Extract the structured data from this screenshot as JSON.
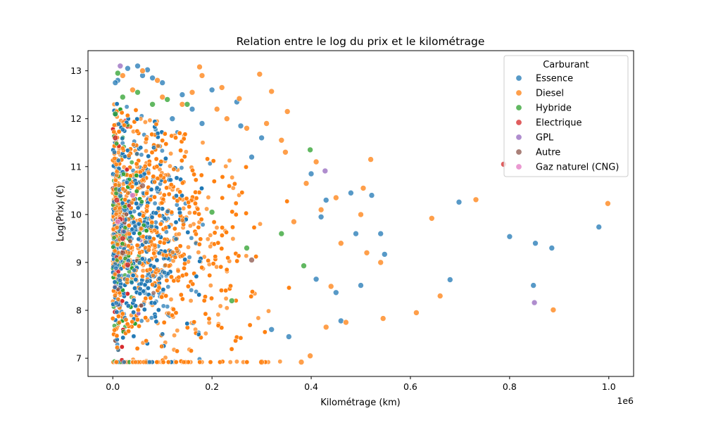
{
  "chart_data": {
    "type": "scatter",
    "title": "Relation entre le log du prix et le kilométrage",
    "xlabel": "Kilométrage (km)",
    "ylabel": "Log(Prix) (€)",
    "x_offset_label": "1e6",
    "xlim": [
      -50000,
      1050000
    ],
    "ylim": [
      6.62,
      13.42
    ],
    "x_ticks": [
      0,
      200000,
      400000,
      600000,
      800000,
      1000000
    ],
    "x_tick_labels": [
      "0.0",
      "0.2",
      "0.4",
      "0.6",
      "0.8",
      "1.0"
    ],
    "y_ticks": [
      7,
      8,
      9,
      10,
      11,
      12,
      13
    ],
    "y_tick_labels": [
      "7",
      "8",
      "9",
      "10",
      "11",
      "12",
      "13"
    ],
    "grid": false,
    "legend": {
      "title": "Carburant",
      "placement": "top-right"
    },
    "series": [
      {
        "name": "Essence",
        "color": "#1f77b4",
        "points": [
          [
            980000,
            9.74
          ],
          [
            885000,
            9.3
          ],
          [
            852000,
            9.4
          ],
          [
            848000,
            8.52
          ],
          [
            800000,
            9.54
          ],
          [
            698000,
            10.26
          ],
          [
            680000,
            8.64
          ],
          [
            548000,
            9.17
          ],
          [
            540000,
            9.6
          ],
          [
            522000,
            10.4
          ],
          [
            500000,
            8.52
          ],
          [
            490000,
            9.6
          ],
          [
            480000,
            10.45
          ],
          [
            460000,
            7.78
          ],
          [
            450000,
            8.37
          ],
          [
            430000,
            10.3
          ],
          [
            420000,
            9.95
          ],
          [
            410000,
            8.65
          ],
          [
            400000,
            10.85
          ],
          [
            355000,
            7.45
          ],
          [
            320000,
            7.6
          ],
          [
            300000,
            11.6
          ],
          [
            280000,
            11.2
          ],
          [
            258000,
            11.85
          ],
          [
            250000,
            12.35
          ],
          [
            200000,
            12.6
          ],
          [
            180000,
            11.9
          ],
          [
            160000,
            12.2
          ],
          [
            140000,
            12.5
          ],
          [
            120000,
            12.0
          ],
          [
            100000,
            12.75
          ],
          [
            80000,
            12.85
          ],
          [
            70000,
            13.02
          ],
          [
            60000,
            12.9
          ],
          [
            50000,
            13.1
          ],
          [
            30000,
            13.05
          ],
          [
            10000,
            12.8
          ],
          [
            5000,
            12.75
          ]
        ]
      },
      {
        "name": "Diesel",
        "color": "#ff7f0e",
        "points": [
          [
            998000,
            10.23
          ],
          [
            888000,
            8.01
          ],
          [
            732000,
            10.31
          ],
          [
            660000,
            8.3
          ],
          [
            643000,
            9.92
          ],
          [
            612000,
            7.95
          ],
          [
            545000,
            7.83
          ],
          [
            540000,
            9.0
          ],
          [
            520000,
            11.15
          ],
          [
            512000,
            9.2
          ],
          [
            505000,
            10.55
          ],
          [
            500000,
            10.0
          ],
          [
            470000,
            7.75
          ],
          [
            460000,
            9.4
          ],
          [
            450000,
            10.35
          ],
          [
            440000,
            8.5
          ],
          [
            430000,
            7.65
          ],
          [
            420000,
            10.1
          ],
          [
            410000,
            11.1
          ],
          [
            398000,
            7.05
          ],
          [
            390000,
            10.65
          ],
          [
            380000,
            6.92
          ],
          [
            365000,
            9.85
          ],
          [
            352000,
            12.15
          ],
          [
            348000,
            11.3
          ],
          [
            340000,
            11.55
          ],
          [
            320000,
            12.57
          ],
          [
            310000,
            11.9
          ],
          [
            300000,
            6.92
          ],
          [
            296000,
            12.93
          ],
          [
            270000,
            11.8
          ],
          [
            255000,
            12.42
          ],
          [
            230000,
            12.0
          ],
          [
            220000,
            12.65
          ],
          [
            210000,
            12.2
          ],
          [
            180000,
            12.9
          ],
          [
            175000,
            13.08
          ],
          [
            160000,
            12.55
          ],
          [
            140000,
            12.3
          ],
          [
            100000,
            12.45
          ],
          [
            90000,
            12.8
          ],
          [
            60000,
            13.0
          ],
          [
            40000,
            12.6
          ],
          [
            20000,
            12.9
          ]
        ]
      },
      {
        "name": "Hybride",
        "color": "#2ca02c",
        "points": [
          [
            398000,
            11.35
          ],
          [
            385000,
            8.93
          ],
          [
            340000,
            9.6
          ],
          [
            270000,
            9.3
          ],
          [
            240000,
            8.2
          ],
          [
            200000,
            10.05
          ],
          [
            150000,
            12.3
          ],
          [
            110000,
            12.4
          ],
          [
            80000,
            12.3
          ],
          [
            50000,
            12.55
          ],
          [
            20000,
            12.45
          ],
          [
            10000,
            12.95
          ],
          [
            5000,
            12.1
          ]
        ]
      },
      {
        "name": "Electrique",
        "color": "#d62728",
        "points": [
          [
            788000,
            11.05
          ],
          [
            30000,
            8.95
          ],
          [
            20000,
            9.5
          ],
          [
            15000,
            9.9
          ],
          [
            8000,
            10.3
          ],
          [
            5000,
            11.6
          ]
        ]
      },
      {
        "name": "GPL",
        "color": "#9467bd",
        "points": [
          [
            850000,
            8.16
          ],
          [
            428000,
            10.91
          ],
          [
            15000,
            13.1
          ]
        ]
      },
      {
        "name": "Autre",
        "color": "#8c564b",
        "points": [
          [
            280000,
            9.05
          ],
          [
            60000,
            10.6
          ],
          [
            20000,
            9.2
          ]
        ]
      },
      {
        "name": "Gaz naturel (CNG)",
        "color": "#e377c2",
        "points": [
          [
            40000,
            10.4
          ],
          [
            10000,
            9.85
          ]
        ]
      }
    ]
  }
}
